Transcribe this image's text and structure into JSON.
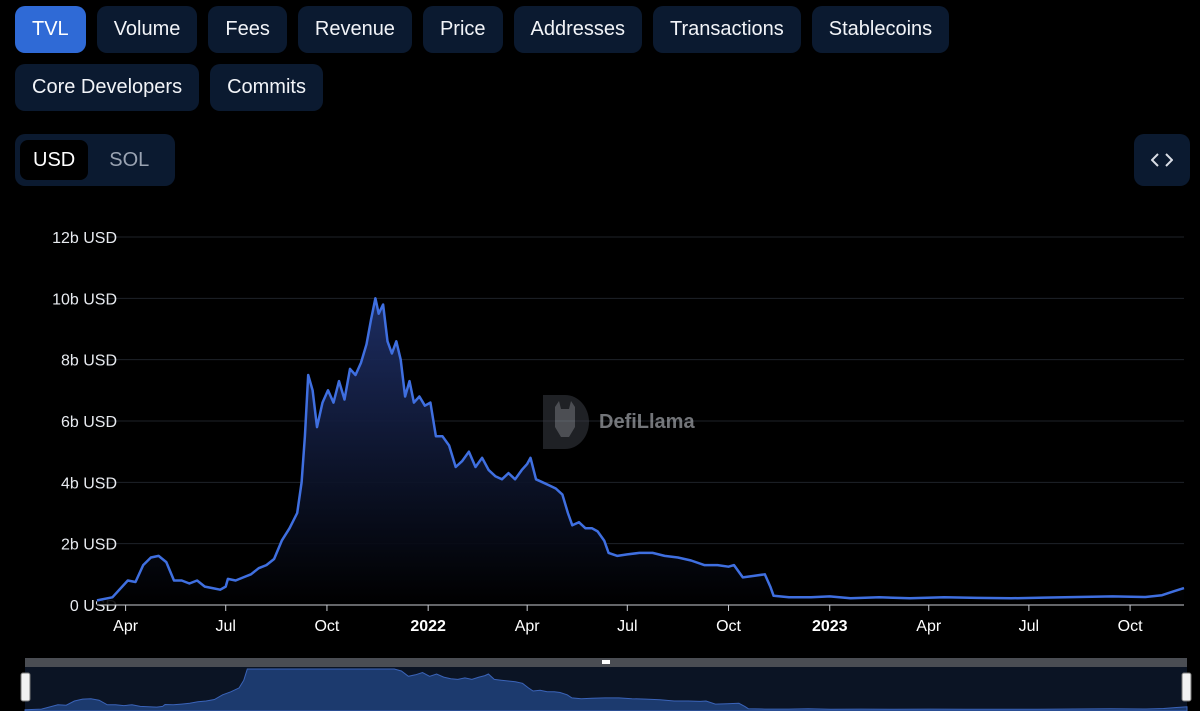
{
  "tabs": [
    {
      "label": "TVL",
      "active": true,
      "name": "tab-tvl"
    },
    {
      "label": "Volume",
      "active": false,
      "name": "tab-volume"
    },
    {
      "label": "Fees",
      "active": false,
      "name": "tab-fees"
    },
    {
      "label": "Revenue",
      "active": false,
      "name": "tab-revenue"
    },
    {
      "label": "Price",
      "active": false,
      "name": "tab-price"
    },
    {
      "label": "Addresses",
      "active": false,
      "name": "tab-addresses"
    },
    {
      "label": "Transactions",
      "active": false,
      "name": "tab-transactions"
    },
    {
      "label": "Stablecoins",
      "active": false,
      "name": "tab-stablecoins"
    },
    {
      "label": "Core Developers",
      "active": false,
      "name": "tab-core-developers"
    },
    {
      "label": "Commits",
      "active": false,
      "name": "tab-commits"
    }
  ],
  "currency_toggle": {
    "options": [
      "USD",
      "SOL"
    ],
    "selected": "USD"
  },
  "embed_button": {
    "icon": "code-brackets-icon"
  },
  "watermark": {
    "text": "DefiLlama",
    "icon": "defillama-logo-icon"
  },
  "colors": {
    "line": "#3f6fe0",
    "area_top": "#1e2f66",
    "tab_bg": "#0b1a30",
    "tab_active_bg": "#2f6ad6"
  },
  "chart_data": {
    "type": "area",
    "title": "",
    "xlabel": "",
    "ylabel": "",
    "unit": "USD",
    "y_tick_labels": [
      "0 USD",
      "2b USD",
      "4b USD",
      "6b USD",
      "8b USD",
      "10b USD",
      "12b USD"
    ],
    "ylim": [
      0,
      12
    ],
    "y_units": "billions USD",
    "x_tick_labels": [
      {
        "label": "Apr",
        "date": "2021-04-01",
        "bold": false
      },
      {
        "label": "Jul",
        "date": "2021-07-01",
        "bold": false
      },
      {
        "label": "Oct",
        "date": "2021-10-01",
        "bold": false
      },
      {
        "label": "2022",
        "date": "2022-01-01",
        "bold": true
      },
      {
        "label": "Apr",
        "date": "2022-04-01",
        "bold": false
      },
      {
        "label": "Jul",
        "date": "2022-07-01",
        "bold": false
      },
      {
        "label": "Oct",
        "date": "2022-10-01",
        "bold": false
      },
      {
        "label": "2023",
        "date": "2023-01-01",
        "bold": true
      },
      {
        "label": "Apr",
        "date": "2023-04-01",
        "bold": false
      },
      {
        "label": "Jul",
        "date": "2023-07-01",
        "bold": false
      },
      {
        "label": "Oct",
        "date": "2023-10-01",
        "bold": false
      }
    ],
    "xlim": [
      "2021-03-06",
      "2023-11-19"
    ],
    "grid": "horizontal",
    "legend": "none",
    "series": [
      {
        "points": [
          [
            "2021-03-06",
            0.15
          ],
          [
            "2021-03-20",
            0.25
          ],
          [
            "2021-04-03",
            0.8
          ],
          [
            "2021-04-10",
            0.75
          ],
          [
            "2021-04-17",
            1.3
          ],
          [
            "2021-04-24",
            1.55
          ],
          [
            "2021-05-01",
            1.6
          ],
          [
            "2021-05-08",
            1.4
          ],
          [
            "2021-05-15",
            0.8
          ],
          [
            "2021-05-22",
            0.8
          ],
          [
            "2021-05-29",
            0.7
          ],
          [
            "2021-06-05",
            0.8
          ],
          [
            "2021-06-12",
            0.6
          ],
          [
            "2021-06-19",
            0.55
          ],
          [
            "2021-06-26",
            0.5
          ],
          [
            "2021-07-01",
            0.6
          ],
          [
            "2021-07-03",
            0.85
          ],
          [
            "2021-07-10",
            0.8
          ],
          [
            "2021-07-17",
            0.9
          ],
          [
            "2021-07-24",
            1.0
          ],
          [
            "2021-07-31",
            1.2
          ],
          [
            "2021-08-07",
            1.3
          ],
          [
            "2021-08-14",
            1.5
          ],
          [
            "2021-08-21",
            2.1
          ],
          [
            "2021-08-28",
            2.5
          ],
          [
            "2021-09-04",
            3.0
          ],
          [
            "2021-09-08",
            4.0
          ],
          [
            "2021-09-11",
            5.5
          ],
          [
            "2021-09-14",
            7.5
          ],
          [
            "2021-09-18",
            7.0
          ],
          [
            "2021-09-22",
            5.8
          ],
          [
            "2021-09-27",
            6.6
          ],
          [
            "2021-10-02",
            7.0
          ],
          [
            "2021-10-07",
            6.6
          ],
          [
            "2021-10-12",
            7.3
          ],
          [
            "2021-10-17",
            6.7
          ],
          [
            "2021-10-22",
            7.7
          ],
          [
            "2021-10-27",
            7.5
          ],
          [
            "2021-11-01",
            7.9
          ],
          [
            "2021-11-06",
            8.5
          ],
          [
            "2021-11-10",
            9.3
          ],
          [
            "2021-11-14",
            10.0
          ],
          [
            "2021-11-17",
            9.5
          ],
          [
            "2021-11-21",
            9.8
          ],
          [
            "2021-11-25",
            8.6
          ],
          [
            "2021-11-29",
            8.2
          ],
          [
            "2021-12-03",
            8.6
          ],
          [
            "2021-12-07",
            8.0
          ],
          [
            "2021-12-11",
            6.8
          ],
          [
            "2021-12-15",
            7.3
          ],
          [
            "2021-12-19",
            6.6
          ],
          [
            "2021-12-24",
            6.8
          ],
          [
            "2021-12-29",
            6.5
          ],
          [
            "2022-01-03",
            6.6
          ],
          [
            "2022-01-08",
            5.5
          ],
          [
            "2022-01-14",
            5.5
          ],
          [
            "2022-01-20",
            5.2
          ],
          [
            "2022-01-26",
            4.5
          ],
          [
            "2022-02-01",
            4.7
          ],
          [
            "2022-02-07",
            5.0
          ],
          [
            "2022-02-13",
            4.5
          ],
          [
            "2022-02-19",
            4.8
          ],
          [
            "2022-02-25",
            4.4
          ],
          [
            "2022-03-03",
            4.2
          ],
          [
            "2022-03-09",
            4.1
          ],
          [
            "2022-03-15",
            4.3
          ],
          [
            "2022-03-21",
            4.1
          ],
          [
            "2022-03-27",
            4.4
          ],
          [
            "2022-04-01",
            4.6
          ],
          [
            "2022-04-04",
            4.8
          ],
          [
            "2022-04-09",
            4.1
          ],
          [
            "2022-04-15",
            4.0
          ],
          [
            "2022-04-21",
            3.9
          ],
          [
            "2022-04-27",
            3.8
          ],
          [
            "2022-05-03",
            3.6
          ],
          [
            "2022-05-08",
            3.0
          ],
          [
            "2022-05-12",
            2.6
          ],
          [
            "2022-05-18",
            2.7
          ],
          [
            "2022-05-24",
            2.5
          ],
          [
            "2022-05-30",
            2.5
          ],
          [
            "2022-06-04",
            2.4
          ],
          [
            "2022-06-10",
            2.1
          ],
          [
            "2022-06-14",
            1.7
          ],
          [
            "2022-06-22",
            1.6
          ],
          [
            "2022-07-01",
            1.65
          ],
          [
            "2022-07-12",
            1.7
          ],
          [
            "2022-07-24",
            1.7
          ],
          [
            "2022-08-04",
            1.6
          ],
          [
            "2022-08-16",
            1.55
          ],
          [
            "2022-08-28",
            1.45
          ],
          [
            "2022-09-09",
            1.3
          ],
          [
            "2022-09-21",
            1.3
          ],
          [
            "2022-10-01",
            1.25
          ],
          [
            "2022-10-06",
            1.3
          ],
          [
            "2022-10-14",
            0.9
          ],
          [
            "2022-10-24",
            0.95
          ],
          [
            "2022-11-03",
            1.0
          ],
          [
            "2022-11-08",
            0.6
          ],
          [
            "2022-11-11",
            0.3
          ],
          [
            "2022-11-25",
            0.25
          ],
          [
            "2022-12-15",
            0.25
          ],
          [
            "2023-01-01",
            0.28
          ],
          [
            "2023-01-20",
            0.22
          ],
          [
            "2023-02-15",
            0.25
          ],
          [
            "2023-03-15",
            0.22
          ],
          [
            "2023-04-15",
            0.25
          ],
          [
            "2023-05-15",
            0.23
          ],
          [
            "2023-06-15",
            0.22
          ],
          [
            "2023-07-15",
            0.24
          ],
          [
            "2023-08-15",
            0.26
          ],
          [
            "2023-09-15",
            0.28
          ],
          [
            "2023-10-15",
            0.26
          ],
          [
            "2023-10-30",
            0.32
          ],
          [
            "2023-11-10",
            0.45
          ],
          [
            "2023-11-19",
            0.55
          ]
        ]
      }
    ]
  }
}
